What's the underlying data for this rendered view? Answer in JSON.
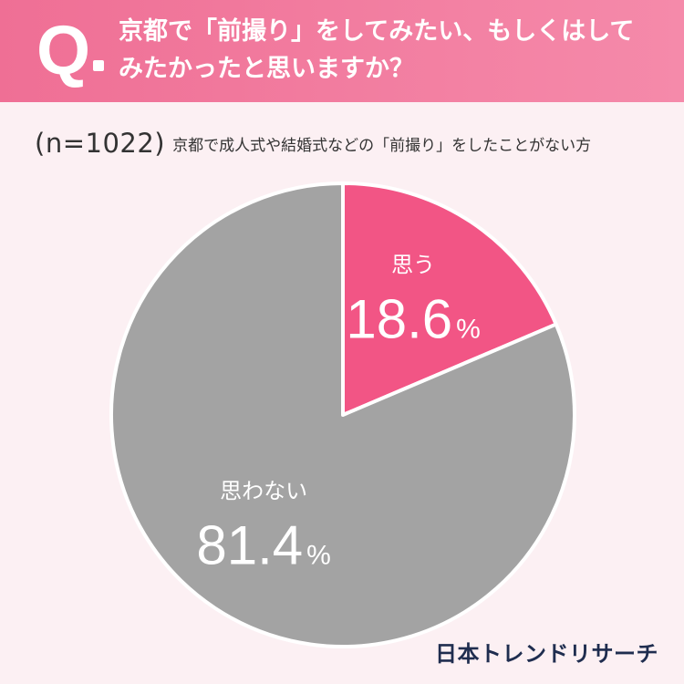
{
  "header": {
    "q_mark": "Q",
    "question_line1": "京都で「前撮り」をしてみたい、もしくはして",
    "question_line2": "みたかったと思いますか？"
  },
  "subtitle": {
    "n_label": "(n=1022)",
    "description": "京都で成人式や結婚式などの「前撮り」をしたことがない方"
  },
  "chart_data": {
    "type": "pie",
    "categories": [
      "思う",
      "思わない"
    ],
    "values": [
      18.6,
      81.4
    ],
    "unit": "%",
    "colors": [
      "#f25585",
      "#a3a3a3"
    ],
    "labels": [
      {
        "text": "思う",
        "value": "18.6",
        "unit": "%"
      },
      {
        "text": "思わない",
        "value": "81.4",
        "unit": "%"
      }
    ]
  },
  "brand": "日本トレンドリサーチ",
  "colors": {
    "header": "#ef6f95",
    "background": "#fcf0f3",
    "pink_slice": "#f25585",
    "gray_slice": "#a3a3a3",
    "brand_text": "#1f2d4f"
  }
}
